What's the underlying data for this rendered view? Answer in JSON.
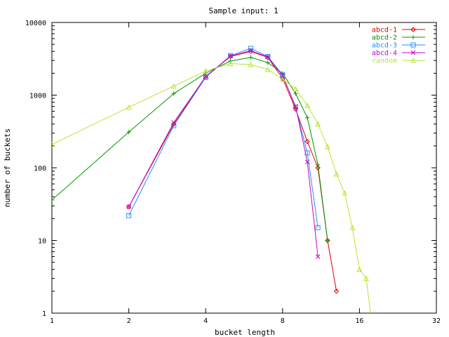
{
  "chart_data": {
    "type": "line",
    "title": "Sample input: 1",
    "xlabel": "bucket length",
    "ylabel": "number of buckets",
    "x_scale": "log2",
    "y_scale": "log10",
    "xlim": [
      1,
      32
    ],
    "ylim": [
      1,
      10000
    ],
    "x_ticks": [
      "1",
      "2",
      "4",
      "8",
      "16",
      "32"
    ],
    "y_ticks": [
      "1",
      "10",
      "100",
      "1000",
      "10000"
    ],
    "grid": false,
    "legend_position": "top-right",
    "series": [
      {
        "name": "abcd-1",
        "color": "#dd0000",
        "marker": "diamond",
        "x": [
          2,
          3,
          4,
          5,
          6,
          7,
          8,
          9,
          10,
          11,
          12,
          13
        ],
        "y": [
          29,
          400,
          1800,
          3400,
          4000,
          3300,
          1700,
          640,
          230,
          100,
          10,
          2
        ]
      },
      {
        "name": "abcd-2",
        "color": "#009900",
        "marker": "plus",
        "x": [
          1,
          2,
          3,
          4,
          5,
          6,
          7,
          8,
          9,
          10,
          11,
          12
        ],
        "y": [
          36,
          310,
          1050,
          2000,
          2950,
          3300,
          2800,
          2000,
          1050,
          490,
          110,
          10
        ]
      },
      {
        "name": "abcd-3",
        "color": "#1e90ff",
        "marker": "square",
        "x": [
          2,
          3,
          4,
          5,
          6,
          7,
          8,
          9,
          10,
          11
        ],
        "y": [
          22,
          380,
          1750,
          3500,
          4400,
          3400,
          1900,
          680,
          160,
          15
        ]
      },
      {
        "name": "abcd-4",
        "color": "#cc00cc",
        "marker": "cross",
        "x": [
          2,
          3,
          4,
          5,
          6,
          7,
          8,
          9,
          10,
          11
        ],
        "y": [
          29,
          420,
          1800,
          3450,
          4100,
          3350,
          1850,
          700,
          120,
          6
        ]
      },
      {
        "name": "random",
        "color": "#b8e633",
        "marker": "triangle",
        "x": [
          1,
          2,
          3,
          4,
          5,
          6,
          7,
          8,
          9,
          10,
          11,
          12,
          13,
          14,
          15,
          16,
          17,
          18
        ],
        "y": [
          210,
          680,
          1330,
          2150,
          2720,
          2630,
          2250,
          1650,
          1220,
          720,
          400,
          195,
          82,
          45,
          15,
          4,
          3,
          0.6
        ]
      }
    ]
  }
}
